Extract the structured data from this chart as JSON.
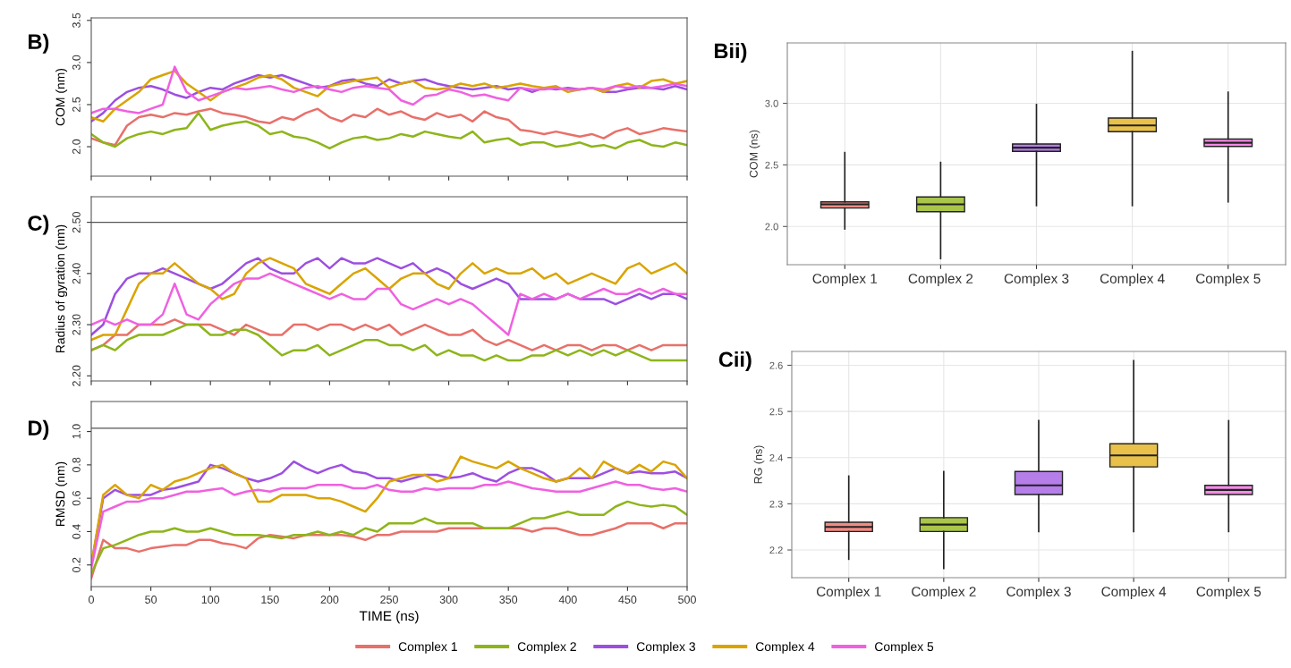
{
  "chart_data": [
    {
      "type": "line",
      "title": "B)",
      "ylabel": "COM (nm)",
      "x": [
        0,
        10,
        20,
        30,
        40,
        50,
        60,
        70,
        80,
        90,
        100,
        110,
        120,
        130,
        140,
        150,
        160,
        170,
        180,
        190,
        200,
        210,
        220,
        230,
        240,
        250,
        260,
        270,
        280,
        290,
        300,
        310,
        320,
        330,
        340,
        350,
        360,
        370,
        380,
        390,
        400,
        410,
        420,
        430,
        440,
        450,
        460,
        470,
        480,
        490,
        500
      ],
      "xlim": [
        0,
        500
      ],
      "xticks": [
        {
          "value": 0,
          "label": null
        },
        {
          "value": 50,
          "label": null
        },
        {
          "value": 100,
          "label": null
        },
        {
          "value": 150,
          "label": null
        },
        {
          "value": 200,
          "label": null
        },
        {
          "value": 250,
          "label": null
        },
        {
          "value": 300,
          "label": null
        },
        {
          "value": 350,
          "label": null
        },
        {
          "value": 400,
          "label": null
        },
        {
          "value": 450,
          "label": null
        },
        {
          "value": 500,
          "label": null
        }
      ],
      "ylim": [
        1.65,
        3.53
      ],
      "yticks": [
        {
          "value": 2,
          "label": "2.0"
        },
        2.5,
        {
          "value": 3,
          "label": "3.0"
        },
        3.5
      ],
      "tick_labels": "y",
      "grid": false,
      "legend": false,
      "series": [
        {
          "color": "#e8706a",
          "values": [
            2.1,
            2.05,
            2.02,
            2.25,
            2.35,
            2.38,
            2.35,
            2.4,
            2.38,
            2.42,
            2.45,
            2.4,
            2.38,
            2.35,
            2.3,
            2.28,
            2.35,
            2.32,
            2.4,
            2.45,
            2.35,
            2.3,
            2.38,
            2.35,
            2.45,
            2.38,
            2.42,
            2.35,
            2.32,
            2.4,
            2.35,
            2.38,
            2.3,
            2.42,
            2.35,
            2.32,
            2.2,
            2.18,
            2.15,
            2.18,
            2.15,
            2.12,
            2.15,
            2.1,
            2.18,
            2.22,
            2.15,
            2.18,
            2.22,
            2.2,
            2.18
          ]
        },
        {
          "color": "#8db51a",
          "values": [
            2.15,
            2.05,
            2.0,
            2.1,
            2.15,
            2.18,
            2.15,
            2.2,
            2.22,
            2.4,
            2.2,
            2.25,
            2.28,
            2.3,
            2.25,
            2.15,
            2.18,
            2.12,
            2.1,
            2.05,
            1.98,
            2.05,
            2.1,
            2.12,
            2.08,
            2.1,
            2.15,
            2.12,
            2.18,
            2.15,
            2.12,
            2.1,
            2.18,
            2.05,
            2.08,
            2.1,
            2.02,
            2.05,
            2.05,
            2.0,
            2.02,
            2.05,
            2.0,
            2.02,
            1.98,
            2.05,
            2.08,
            2.02,
            2.0,
            2.05,
            2.02
          ]
        },
        {
          "color": "#9d4fe0",
          "values": [
            2.3,
            2.4,
            2.55,
            2.65,
            2.7,
            2.72,
            2.68,
            2.62,
            2.58,
            2.65,
            2.7,
            2.68,
            2.75,
            2.8,
            2.85,
            2.82,
            2.85,
            2.8,
            2.75,
            2.7,
            2.72,
            2.78,
            2.8,
            2.75,
            2.72,
            2.8,
            2.75,
            2.78,
            2.8,
            2.75,
            2.72,
            2.7,
            2.68,
            2.7,
            2.72,
            2.68,
            2.7,
            2.65,
            2.7,
            2.68,
            2.7,
            2.68,
            2.7,
            2.65,
            2.65,
            2.68,
            2.7,
            2.7,
            2.68,
            2.72,
            2.68
          ]
        },
        {
          "color": "#d9a400",
          "values": [
            2.35,
            2.3,
            2.45,
            2.55,
            2.65,
            2.8,
            2.85,
            2.9,
            2.75,
            2.65,
            2.55,
            2.65,
            2.7,
            2.75,
            2.82,
            2.85,
            2.8,
            2.7,
            2.65,
            2.6,
            2.72,
            2.75,
            2.78,
            2.8,
            2.82,
            2.7,
            2.75,
            2.78,
            2.7,
            2.68,
            2.7,
            2.75,
            2.72,
            2.75,
            2.7,
            2.72,
            2.75,
            2.72,
            2.7,
            2.72,
            2.65,
            2.68,
            2.7,
            2.65,
            2.72,
            2.75,
            2.7,
            2.78,
            2.8,
            2.75,
            2.78
          ]
        },
        {
          "color": "#f060e0",
          "values": [
            2.4,
            2.45,
            2.45,
            2.42,
            2.4,
            2.45,
            2.5,
            2.95,
            2.65,
            2.55,
            2.6,
            2.65,
            2.7,
            2.68,
            2.7,
            2.72,
            2.68,
            2.65,
            2.7,
            2.72,
            2.68,
            2.65,
            2.7,
            2.72,
            2.7,
            2.68,
            2.55,
            2.5,
            2.6,
            2.62,
            2.68,
            2.65,
            2.6,
            2.62,
            2.58,
            2.55,
            2.7,
            2.68,
            2.68,
            2.7,
            2.68,
            2.68,
            2.7,
            2.68,
            2.72,
            2.7,
            2.72,
            2.7,
            2.72,
            2.75,
            2.72
          ]
        }
      ]
    },
    {
      "type": "line",
      "title": "C)",
      "ylabel": "Radius of gyration (nm)",
      "x": [
        0,
        10,
        20,
        30,
        40,
        50,
        60,
        70,
        80,
        90,
        100,
        110,
        120,
        130,
        140,
        150,
        160,
        170,
        180,
        190,
        200,
        210,
        220,
        230,
        240,
        250,
        260,
        270,
        280,
        290,
        300,
        310,
        320,
        330,
        340,
        350,
        360,
        370,
        380,
        390,
        400,
        410,
        420,
        430,
        440,
        450,
        460,
        470,
        480,
        490,
        500
      ],
      "xlim": [
        0,
        500
      ],
      "xticks": [
        {
          "value": 0,
          "label": null
        },
        {
          "value": 50,
          "label": null
        },
        {
          "value": 100,
          "label": null
        },
        {
          "value": 150,
          "label": null
        },
        {
          "value": 200,
          "label": null
        },
        {
          "value": 250,
          "label": null
        },
        {
          "value": 300,
          "label": null
        },
        {
          "value": 350,
          "label": null
        },
        {
          "value": 400,
          "label": null
        },
        {
          "value": 450,
          "label": null
        },
        {
          "value": 500,
          "label": null
        }
      ],
      "ylim": [
        2.19,
        2.55
      ],
      "yticks": [
        {
          "value": 2.2,
          "label": "2.20"
        },
        {
          "value": 2.3,
          "label": "2.30"
        },
        {
          "value": 2.4,
          "label": "2.40"
        },
        {
          "value": 2.5,
          "label": "2.50"
        }
      ],
      "tick_labels": "y",
      "grid": false,
      "legend": false,
      "ref_lines": [
        {
          "axis": "y",
          "value": 2.5,
          "color": "#555555"
        }
      ],
      "series": [
        {
          "color": "#e8706a",
          "values": [
            2.25,
            2.26,
            2.28,
            2.28,
            2.3,
            2.3,
            2.3,
            2.31,
            2.3,
            2.3,
            2.3,
            2.29,
            2.28,
            2.3,
            2.29,
            2.28,
            2.28,
            2.3,
            2.3,
            2.29,
            2.3,
            2.3,
            2.29,
            2.3,
            2.29,
            2.3,
            2.28,
            2.29,
            2.3,
            2.29,
            2.28,
            2.28,
            2.29,
            2.27,
            2.26,
            2.27,
            2.26,
            2.25,
            2.26,
            2.25,
            2.26,
            2.26,
            2.25,
            2.26,
            2.26,
            2.25,
            2.26,
            2.25,
            2.26,
            2.26,
            2.26
          ]
        },
        {
          "color": "#8db51a",
          "values": [
            2.25,
            2.26,
            2.25,
            2.27,
            2.28,
            2.28,
            2.28,
            2.29,
            2.3,
            2.3,
            2.28,
            2.28,
            2.29,
            2.29,
            2.28,
            2.26,
            2.24,
            2.25,
            2.25,
            2.26,
            2.24,
            2.25,
            2.26,
            2.27,
            2.27,
            2.26,
            2.26,
            2.25,
            2.26,
            2.24,
            2.25,
            2.24,
            2.24,
            2.23,
            2.24,
            2.23,
            2.23,
            2.24,
            2.24,
            2.25,
            2.24,
            2.25,
            2.24,
            2.25,
            2.24,
            2.25,
            2.24,
            2.23,
            2.23,
            2.23,
            2.23
          ]
        },
        {
          "color": "#9d4fe0",
          "values": [
            2.28,
            2.3,
            2.36,
            2.39,
            2.4,
            2.4,
            2.41,
            2.4,
            2.39,
            2.38,
            2.37,
            2.38,
            2.4,
            2.42,
            2.43,
            2.41,
            2.4,
            2.4,
            2.42,
            2.43,
            2.41,
            2.43,
            2.42,
            2.42,
            2.43,
            2.42,
            2.41,
            2.42,
            2.4,
            2.41,
            2.4,
            2.38,
            2.37,
            2.38,
            2.39,
            2.38,
            2.35,
            2.35,
            2.35,
            2.35,
            2.36,
            2.35,
            2.35,
            2.35,
            2.34,
            2.35,
            2.36,
            2.35,
            2.36,
            2.36,
            2.35
          ]
        },
        {
          "color": "#d9a400",
          "values": [
            2.27,
            2.28,
            2.28,
            2.33,
            2.38,
            2.4,
            2.4,
            2.42,
            2.4,
            2.38,
            2.37,
            2.35,
            2.36,
            2.4,
            2.42,
            2.43,
            2.42,
            2.41,
            2.38,
            2.37,
            2.36,
            2.38,
            2.4,
            2.41,
            2.39,
            2.37,
            2.39,
            2.4,
            2.4,
            2.38,
            2.37,
            2.4,
            2.42,
            2.4,
            2.41,
            2.4,
            2.4,
            2.41,
            2.39,
            2.4,
            2.38,
            2.39,
            2.4,
            2.39,
            2.38,
            2.41,
            2.42,
            2.4,
            2.41,
            2.42,
            2.4
          ]
        },
        {
          "color": "#f060e0",
          "values": [
            2.3,
            2.31,
            2.3,
            2.31,
            2.3,
            2.3,
            2.32,
            2.38,
            2.32,
            2.31,
            2.34,
            2.36,
            2.38,
            2.39,
            2.39,
            2.4,
            2.39,
            2.38,
            2.37,
            2.36,
            2.35,
            2.36,
            2.35,
            2.35,
            2.37,
            2.37,
            2.34,
            2.33,
            2.34,
            2.35,
            2.34,
            2.35,
            2.34,
            2.32,
            2.3,
            2.28,
            2.36,
            2.35,
            2.36,
            2.35,
            2.36,
            2.35,
            2.36,
            2.37,
            2.36,
            2.36,
            2.37,
            2.36,
            2.37,
            2.36,
            2.36
          ]
        }
      ]
    },
    {
      "type": "line",
      "title": "D)",
      "xlabel": "TIME (ns)",
      "ylabel": "RMSD (nm)",
      "x": [
        0,
        10,
        20,
        30,
        40,
        50,
        60,
        70,
        80,
        90,
        100,
        110,
        120,
        130,
        140,
        150,
        160,
        170,
        180,
        190,
        200,
        210,
        220,
        230,
        240,
        250,
        260,
        270,
        280,
        290,
        300,
        310,
        320,
        330,
        340,
        350,
        360,
        370,
        380,
        390,
        400,
        410,
        420,
        430,
        440,
        450,
        460,
        470,
        480,
        490,
        500
      ],
      "xlim": [
        0,
        500
      ],
      "xticks": [
        0,
        50,
        100,
        150,
        200,
        250,
        300,
        350,
        400,
        450,
        500
      ],
      "ylim": [
        0.07,
        1.18
      ],
      "yticks": [
        0.2,
        0.4,
        0.6,
        0.8,
        {
          "value": 1,
          "label": "1.0"
        }
      ],
      "grid": false,
      "legend": "bottom",
      "ref_lines": [
        {
          "axis": "y",
          "value": 1.02,
          "color": "#555555"
        }
      ],
      "series": [
        {
          "name": "Complex 1",
          "color": "#e8706a",
          "values": [
            0.12,
            0.35,
            0.3,
            0.3,
            0.28,
            0.3,
            0.31,
            0.32,
            0.32,
            0.35,
            0.35,
            0.33,
            0.32,
            0.3,
            0.36,
            0.38,
            0.37,
            0.36,
            0.38,
            0.38,
            0.38,
            0.38,
            0.37,
            0.35,
            0.38,
            0.38,
            0.4,
            0.4,
            0.4,
            0.4,
            0.42,
            0.42,
            0.42,
            0.42,
            0.42,
            0.42,
            0.42,
            0.4,
            0.42,
            0.42,
            0.4,
            0.38,
            0.38,
            0.4,
            0.42,
            0.45,
            0.45,
            0.45,
            0.42,
            0.45,
            0.45
          ]
        },
        {
          "name": "Complex 2",
          "color": "#8db51a",
          "values": [
            0.15,
            0.3,
            0.32,
            0.35,
            0.38,
            0.4,
            0.4,
            0.42,
            0.4,
            0.4,
            0.42,
            0.4,
            0.38,
            0.38,
            0.38,
            0.37,
            0.36,
            0.38,
            0.38,
            0.4,
            0.38,
            0.4,
            0.38,
            0.42,
            0.4,
            0.45,
            0.45,
            0.45,
            0.48,
            0.45,
            0.45,
            0.45,
            0.45,
            0.42,
            0.42,
            0.42,
            0.45,
            0.48,
            0.48,
            0.5,
            0.52,
            0.5,
            0.5,
            0.5,
            0.55,
            0.58,
            0.56,
            0.55,
            0.56,
            0.55,
            0.5
          ]
        },
        {
          "name": "Complex 3",
          "color": "#9d4fe0",
          "values": [
            0.2,
            0.6,
            0.65,
            0.62,
            0.62,
            0.62,
            0.65,
            0.66,
            0.68,
            0.7,
            0.8,
            0.78,
            0.75,
            0.72,
            0.7,
            0.72,
            0.75,
            0.82,
            0.78,
            0.75,
            0.78,
            0.8,
            0.76,
            0.75,
            0.72,
            0.72,
            0.7,
            0.72,
            0.74,
            0.74,
            0.72,
            0.73,
            0.75,
            0.72,
            0.7,
            0.75,
            0.78,
            0.78,
            0.75,
            0.7,
            0.72,
            0.72,
            0.72,
            0.75,
            0.78,
            0.75,
            0.76,
            0.75,
            0.75,
            0.76,
            0.72
          ]
        },
        {
          "name": "Complex 4",
          "color": "#d9a400",
          "values": [
            0.2,
            0.62,
            0.68,
            0.62,
            0.6,
            0.68,
            0.65,
            0.7,
            0.72,
            0.75,
            0.78,
            0.8,
            0.75,
            0.72,
            0.58,
            0.58,
            0.62,
            0.62,
            0.62,
            0.6,
            0.6,
            0.58,
            0.55,
            0.52,
            0.6,
            0.7,
            0.72,
            0.74,
            0.74,
            0.7,
            0.72,
            0.85,
            0.82,
            0.8,
            0.78,
            0.82,
            0.78,
            0.75,
            0.72,
            0.7,
            0.72,
            0.78,
            0.72,
            0.82,
            0.78,
            0.75,
            0.8,
            0.76,
            0.82,
            0.8,
            0.72
          ]
        },
        {
          "name": "Complex 5",
          "color": "#f060e0",
          "values": [
            0.18,
            0.52,
            0.55,
            0.58,
            0.58,
            0.6,
            0.6,
            0.62,
            0.64,
            0.64,
            0.65,
            0.66,
            0.62,
            0.64,
            0.65,
            0.64,
            0.66,
            0.66,
            0.66,
            0.68,
            0.68,
            0.68,
            0.66,
            0.66,
            0.68,
            0.65,
            0.64,
            0.64,
            0.66,
            0.65,
            0.66,
            0.66,
            0.66,
            0.68,
            0.68,
            0.7,
            0.68,
            0.66,
            0.65,
            0.64,
            0.64,
            0.64,
            0.66,
            0.68,
            0.7,
            0.68,
            0.68,
            0.66,
            0.65,
            0.66,
            0.64
          ]
        }
      ]
    },
    {
      "type": "box",
      "title": "Bii)",
      "ylabel": "COM (ns)",
      "categories": [
        "Complex 1",
        "Complex 2",
        "Complex 3",
        "Complex 4",
        "Complex 5"
      ],
      "colors": [
        "#f08c84",
        "#a9c54a",
        "#b57ee8",
        "#e8c04a",
        "#f58ce8"
      ],
      "ylim": [
        1.69,
        3.49
      ],
      "yticks": [
        {
          "value": 2,
          "label": "2.0"
        },
        2.5,
        {
          "value": 3,
          "label": "3.0"
        }
      ],
      "grid": true,
      "boxes": [
        {
          "low": 1.98,
          "q1": 2.15,
          "median": 2.18,
          "q3": 2.2,
          "high": 2.6
        },
        {
          "low": 1.74,
          "q1": 2.12,
          "median": 2.18,
          "q3": 2.24,
          "high": 2.52
        },
        {
          "low": 2.17,
          "q1": 2.61,
          "median": 2.64,
          "q3": 2.67,
          "high": 2.99
        },
        {
          "low": 2.17,
          "q1": 2.77,
          "median": 2.82,
          "q3": 2.88,
          "high": 3.42
        },
        {
          "low": 2.2,
          "q1": 2.65,
          "median": 2.68,
          "q3": 2.71,
          "high": 3.09
        }
      ]
    },
    {
      "type": "box",
      "title": "Cii)",
      "ylabel": "RG (ns)",
      "categories": [
        "Complex 1",
        "Complex 2",
        "Complex 3",
        "Complex 4",
        "Complex 5"
      ],
      "colors": [
        "#f08c84",
        "#a9c54a",
        "#b57ee8",
        "#e8c04a",
        "#f58ce8"
      ],
      "ylim": [
        2.14,
        2.63
      ],
      "yticks": [
        2.2,
        2.3,
        2.4,
        2.5,
        2.6
      ],
      "grid": true,
      "boxes": [
        {
          "low": 2.18,
          "q1": 2.24,
          "median": 2.25,
          "q3": 2.26,
          "high": 2.36
        },
        {
          "low": 2.16,
          "q1": 2.24,
          "median": 2.255,
          "q3": 2.27,
          "high": 2.37
        },
        {
          "low": 2.24,
          "q1": 2.32,
          "median": 2.34,
          "q3": 2.37,
          "high": 2.48
        },
        {
          "low": 2.24,
          "q1": 2.38,
          "median": 2.405,
          "q3": 2.43,
          "high": 2.61
        },
        {
          "low": 2.24,
          "q1": 2.32,
          "median": 2.33,
          "q3": 2.34,
          "high": 2.48
        }
      ]
    }
  ]
}
